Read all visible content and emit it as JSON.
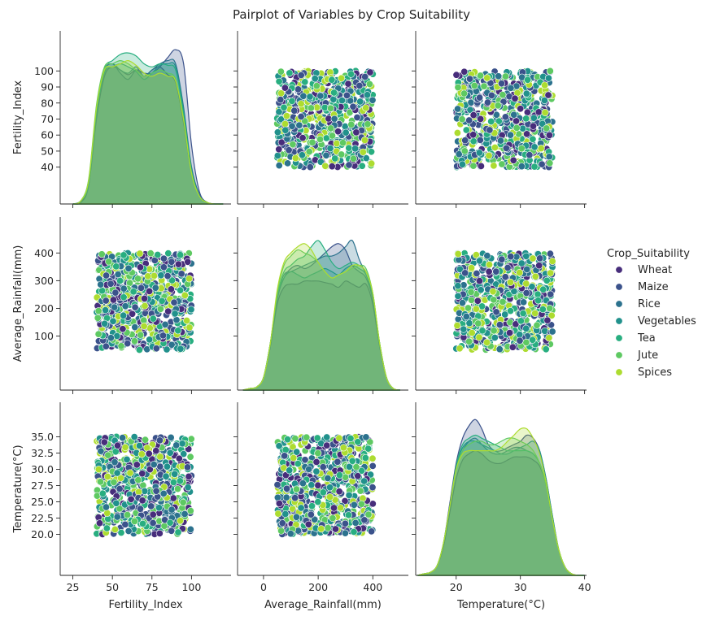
{
  "chart_data": {
    "type": "scatter",
    "title": "Pairplot of Variables by Crop Suitability",
    "variables": [
      {
        "name": "Fertility_Index",
        "label": "Fertility_Index",
        "range": [
          40,
          100
        ],
        "limits": [
          17,
          125
        ],
        "ticks": [
          25,
          50,
          75,
          100
        ],
        "yticks": [
          40,
          50,
          60,
          70,
          80,
          90,
          100
        ]
      },
      {
        "name": "Average_Rainfall(mm)",
        "label": "Average_Rainfall(mm)",
        "range": [
          50,
          400
        ],
        "limits": [
          -95,
          530
        ],
        "ticks": [
          0,
          200,
          400
        ],
        "yticks": [
          100,
          200,
          300,
          400
        ]
      },
      {
        "name": "Temperature(°C)",
        "label": "Temperature(°C)",
        "range": [
          20,
          35
        ],
        "limits": [
          13.7,
          40.3
        ],
        "ticks": [
          20,
          30,
          40
        ],
        "yticks": [
          20.0,
          22.5,
          25.0,
          27.5,
          30.0,
          32.5,
          35.0
        ],
        "tick_labels": [
          "20.0",
          "22.5",
          "25.0",
          "27.5",
          "30.0",
          "32.5",
          "35.0"
        ]
      }
    ],
    "legend": {
      "title": "Crop_Suitability",
      "position": "right",
      "entries": [
        {
          "name": "Wheat",
          "color": "#472d7b"
        },
        {
          "name": "Maize",
          "color": "#3b528b"
        },
        {
          "name": "Rice",
          "color": "#2c728e"
        },
        {
          "name": "Vegetables",
          "color": "#21918c"
        },
        {
          "name": "Tea",
          "color": "#28ae80"
        },
        {
          "name": "Jute",
          "color": "#5ec962"
        },
        {
          "name": "Spices",
          "color": "#addc30"
        }
      ]
    },
    "diagonal_kde": [
      {
        "variable": "Fertility_Index",
        "x": [
          25,
          30,
          35,
          40,
          45,
          50,
          55,
          60,
          65,
          70,
          75,
          80,
          85,
          90,
          95,
          100,
          105,
          110,
          115,
          120
        ],
        "series": [
          {
            "name": "Wheat",
            "values": [
              0,
              0.01,
              0.12,
              0.55,
              0.82,
              0.88,
              0.86,
              0.83,
              0.86,
              0.82,
              0.86,
              0.88,
              0.83,
              0.78,
              0.52,
              0.2,
              0.05,
              0.01,
              0,
              0
            ]
          },
          {
            "name": "Maize",
            "values": [
              0,
              0.01,
              0.12,
              0.58,
              0.85,
              0.9,
              0.84,
              0.8,
              0.86,
              0.84,
              0.84,
              0.88,
              0.94,
              0.99,
              0.9,
              0.38,
              0.08,
              0.01,
              0,
              0
            ]
          },
          {
            "name": "Rice",
            "values": [
              0,
              0.02,
              0.14,
              0.62,
              0.86,
              0.9,
              0.86,
              0.84,
              0.88,
              0.82,
              0.86,
              0.9,
              0.92,
              0.9,
              0.62,
              0.24,
              0.06,
              0.01,
              0,
              0
            ]
          },
          {
            "name": "Vegetables",
            "values": [
              0,
              0.02,
              0.13,
              0.58,
              0.84,
              0.88,
              0.9,
              0.88,
              0.85,
              0.8,
              0.84,
              0.89,
              0.9,
              0.88,
              0.6,
              0.22,
              0.05,
              0.01,
              0,
              0
            ]
          },
          {
            "name": "Tea",
            "values": [
              0,
              0.02,
              0.14,
              0.6,
              0.87,
              0.92,
              0.96,
              0.97,
              0.95,
              0.9,
              0.88,
              0.9,
              0.89,
              0.86,
              0.58,
              0.22,
              0.05,
              0.01,
              0,
              0
            ]
          },
          {
            "name": "Jute",
            "values": [
              0,
              0.02,
              0.16,
              0.64,
              0.88,
              0.9,
              0.92,
              0.9,
              0.86,
              0.82,
              0.84,
              0.86,
              0.84,
              0.8,
              0.55,
              0.2,
              0.05,
              0.01,
              0,
              0
            ]
          },
          {
            "name": "Spices",
            "values": [
              0,
              0.02,
              0.15,
              0.62,
              0.86,
              0.88,
              0.9,
              0.92,
              0.89,
              0.84,
              0.82,
              0.84,
              0.82,
              0.79,
              0.54,
              0.2,
              0.05,
              0.01,
              0,
              0
            ]
          }
        ]
      },
      {
        "variable": "Average_Rainfall(mm)",
        "x": [
          -75,
          -50,
          -25,
          0,
          25,
          50,
          75,
          100,
          125,
          150,
          175,
          200,
          225,
          250,
          275,
          300,
          325,
          350,
          375,
          400,
          425,
          450,
          475,
          500
        ],
        "series": [
          {
            "name": "Wheat",
            "values": [
              0,
              0.01,
              0.02,
              0.08,
              0.28,
              0.55,
              0.66,
              0.68,
              0.68,
              0.7,
              0.7,
              0.7,
              0.69,
              0.68,
              0.66,
              0.7,
              0.68,
              0.66,
              0.68,
              0.55,
              0.28,
              0.08,
              0.01,
              0
            ]
          },
          {
            "name": "Maize",
            "values": [
              0,
              0.01,
              0.02,
              0.08,
              0.28,
              0.58,
              0.72,
              0.78,
              0.8,
              0.78,
              0.8,
              0.84,
              0.88,
              0.92,
              0.94,
              0.9,
              0.8,
              0.76,
              0.72,
              0.58,
              0.28,
              0.08,
              0.01,
              0
            ]
          },
          {
            "name": "Rice",
            "values": [
              0,
              0.01,
              0.02,
              0.08,
              0.3,
              0.6,
              0.74,
              0.76,
              0.78,
              0.8,
              0.82,
              0.84,
              0.86,
              0.86,
              0.88,
              0.92,
              0.96,
              0.84,
              0.74,
              0.6,
              0.3,
              0.08,
              0.01,
              0
            ]
          },
          {
            "name": "Vegetables",
            "values": [
              0,
              0.01,
              0.02,
              0.08,
              0.3,
              0.6,
              0.72,
              0.76,
              0.74,
              0.72,
              0.74,
              0.76,
              0.78,
              0.76,
              0.74,
              0.78,
              0.8,
              0.78,
              0.74,
              0.6,
              0.3,
              0.08,
              0.01,
              0
            ]
          },
          {
            "name": "Tea",
            "values": [
              0,
              0.01,
              0.02,
              0.08,
              0.3,
              0.6,
              0.76,
              0.8,
              0.84,
              0.86,
              0.92,
              0.96,
              0.9,
              0.82,
              0.78,
              0.8,
              0.82,
              0.8,
              0.76,
              0.62,
              0.3,
              0.08,
              0.01,
              0
            ]
          },
          {
            "name": "Jute",
            "values": [
              0,
              0.01,
              0.02,
              0.08,
              0.3,
              0.62,
              0.8,
              0.86,
              0.9,
              0.88,
              0.86,
              0.82,
              0.76,
              0.72,
              0.74,
              0.76,
              0.78,
              0.8,
              0.78,
              0.62,
              0.3,
              0.08,
              0.01,
              0
            ]
          },
          {
            "name": "Spices",
            "values": [
              0,
              0.01,
              0.02,
              0.08,
              0.3,
              0.64,
              0.82,
              0.88,
              0.92,
              0.94,
              0.9,
              0.82,
              0.76,
              0.72,
              0.74,
              0.76,
              0.8,
              0.8,
              0.76,
              0.62,
              0.3,
              0.08,
              0.01,
              0
            ]
          }
        ]
      },
      {
        "variable": "Temperature(°C)",
        "x": [
          14,
          15,
          16,
          17,
          18,
          19,
          20,
          21,
          22,
          23,
          24,
          25,
          26,
          27,
          28,
          29,
          30,
          31,
          32,
          33,
          34,
          35,
          36,
          37,
          38,
          39,
          40
        ],
        "series": [
          {
            "name": "Wheat",
            "values": [
              0,
              0.01,
              0.02,
              0.06,
              0.18,
              0.4,
              0.62,
              0.74,
              0.78,
              0.8,
              0.78,
              0.74,
              0.72,
              0.72,
              0.74,
              0.76,
              0.76,
              0.76,
              0.74,
              0.7,
              0.58,
              0.36,
              0.16,
              0.05,
              0.01,
              0,
              0
            ]
          },
          {
            "name": "Maize",
            "values": [
              0,
              0.01,
              0.02,
              0.06,
              0.2,
              0.46,
              0.72,
              0.88,
              0.96,
              1.0,
              0.94,
              0.84,
              0.8,
              0.8,
              0.82,
              0.84,
              0.86,
              0.9,
              0.88,
              0.8,
              0.62,
              0.38,
              0.16,
              0.05,
              0.01,
              0,
              0
            ]
          },
          {
            "name": "Rice",
            "values": [
              0,
              0.01,
              0.02,
              0.06,
              0.2,
              0.44,
              0.68,
              0.8,
              0.86,
              0.88,
              0.84,
              0.8,
              0.78,
              0.78,
              0.8,
              0.82,
              0.82,
              0.8,
              0.78,
              0.72,
              0.58,
              0.36,
              0.16,
              0.05,
              0.01,
              0,
              0
            ]
          },
          {
            "name": "Vegetables",
            "values": [
              0,
              0.01,
              0.02,
              0.06,
              0.2,
              0.44,
              0.7,
              0.82,
              0.86,
              0.86,
              0.84,
              0.82,
              0.8,
              0.78,
              0.78,
              0.8,
              0.82,
              0.84,
              0.86,
              0.8,
              0.62,
              0.38,
              0.16,
              0.05,
              0.01,
              0,
              0
            ]
          },
          {
            "name": "Tea",
            "values": [
              0,
              0.01,
              0.02,
              0.06,
              0.2,
              0.44,
              0.7,
              0.84,
              0.88,
              0.9,
              0.88,
              0.86,
              0.84,
              0.82,
              0.8,
              0.8,
              0.8,
              0.8,
              0.78,
              0.72,
              0.58,
              0.36,
              0.16,
              0.05,
              0.01,
              0,
              0
            ]
          },
          {
            "name": "Jute",
            "values": [
              0,
              0.01,
              0.02,
              0.06,
              0.2,
              0.44,
              0.68,
              0.8,
              0.84,
              0.86,
              0.86,
              0.84,
              0.84,
              0.86,
              0.88,
              0.88,
              0.86,
              0.84,
              0.8,
              0.72,
              0.58,
              0.36,
              0.16,
              0.05,
              0.01,
              0,
              0
            ]
          },
          {
            "name": "Spices",
            "values": [
              0,
              0.01,
              0.02,
              0.06,
              0.2,
              0.44,
              0.68,
              0.78,
              0.8,
              0.8,
              0.8,
              0.8,
              0.8,
              0.82,
              0.86,
              0.9,
              0.94,
              0.94,
              0.88,
              0.78,
              0.6,
              0.36,
              0.16,
              0.05,
              0.01,
              0,
              0
            ]
          }
        ]
      }
    ],
    "scatter": {
      "points_per_panel": 700,
      "distribution": "uniform",
      "marker": "circle",
      "edgecolor": "#ffffff"
    },
    "grid": false
  }
}
